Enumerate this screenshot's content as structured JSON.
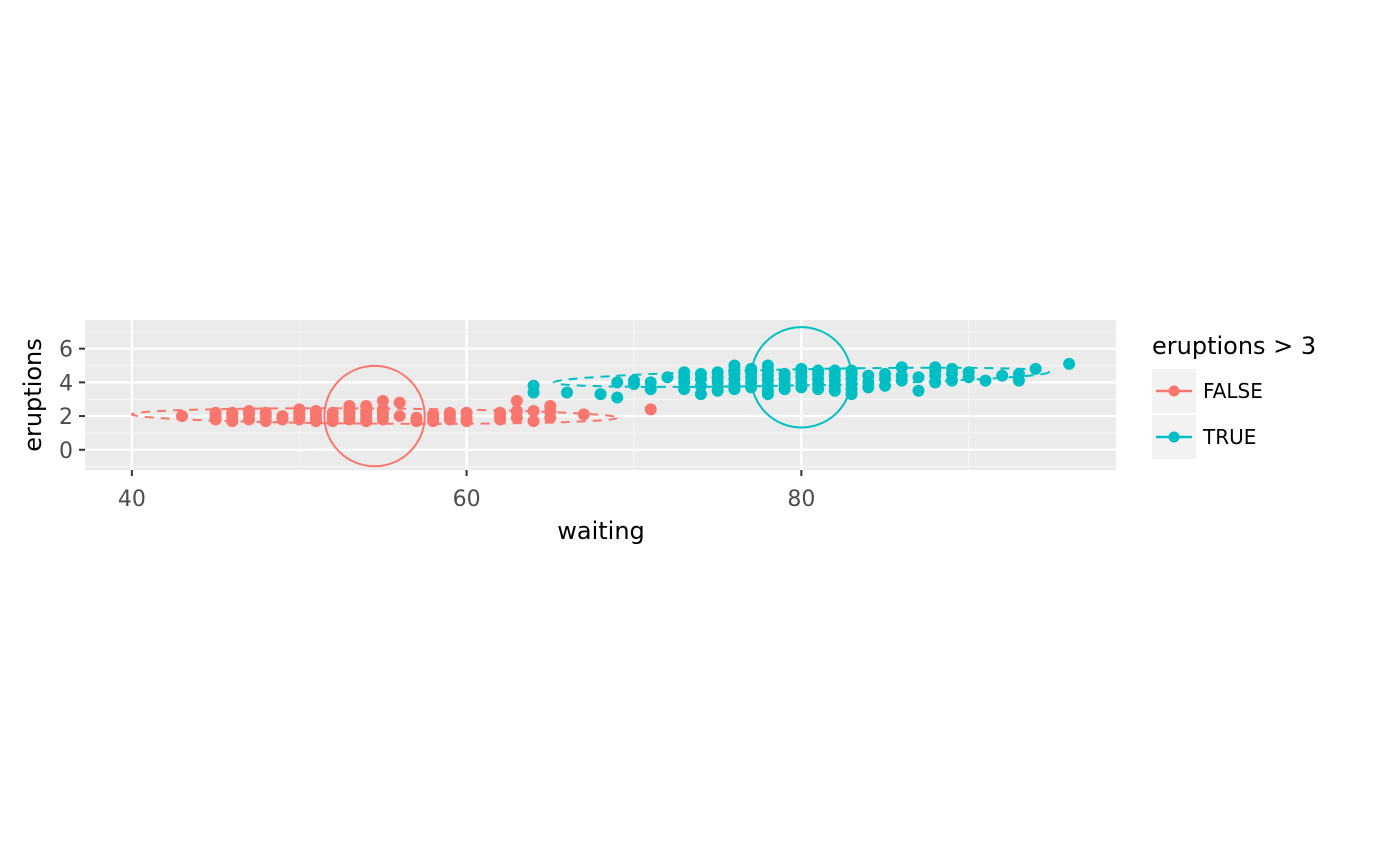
{
  "chart_data": {
    "type": "scatter",
    "xlabel": "waiting",
    "ylabel": "eruptions",
    "xlim": [
      37.2,
      98.8
    ],
    "ylim": [
      -1.2,
      7.7
    ],
    "x_ticks": [
      40,
      60,
      80
    ],
    "x_tick_labels": [
      "40",
      "60",
      "80"
    ],
    "y_ticks": [
      0,
      2,
      4,
      6
    ],
    "y_tick_labels": [
      "0",
      "2",
      "4",
      "6"
    ],
    "grid": true,
    "legend": {
      "title": "eruptions > 3",
      "position": "right",
      "entries": [
        "FALSE",
        "TRUE"
      ]
    },
    "series": [
      {
        "name": "FALSE",
        "color": "#F8766D",
        "points": [
          [
            43,
            2.0
          ],
          [
            45,
            1.8
          ],
          [
            45,
            2.0
          ],
          [
            45,
            2.2
          ],
          [
            46,
            1.7
          ],
          [
            46,
            1.9
          ],
          [
            46,
            2.1
          ],
          [
            46,
            2.2
          ],
          [
            47,
            1.8
          ],
          [
            47,
            2.1
          ],
          [
            47,
            2.3
          ],
          [
            48,
            1.7
          ],
          [
            48,
            2.0
          ],
          [
            48,
            2.2
          ],
          [
            49,
            1.8
          ],
          [
            49,
            2.0
          ],
          [
            50,
            1.8
          ],
          [
            50,
            2.0
          ],
          [
            50,
            2.2
          ],
          [
            50,
            2.4
          ],
          [
            51,
            1.7
          ],
          [
            51,
            1.9
          ],
          [
            51,
            2.1
          ],
          [
            51,
            2.3
          ],
          [
            52,
            1.7
          ],
          [
            52,
            1.9
          ],
          [
            52,
            2.2
          ],
          [
            53,
            1.8
          ],
          [
            53,
            2.0
          ],
          [
            53,
            2.2
          ],
          [
            53,
            2.4
          ],
          [
            53,
            2.6
          ],
          [
            54,
            1.7
          ],
          [
            54,
            1.9
          ],
          [
            54,
            2.1
          ],
          [
            54,
            2.3
          ],
          [
            54,
            2.6
          ],
          [
            55,
            1.8
          ],
          [
            55,
            2.0
          ],
          [
            55,
            2.2
          ],
          [
            55,
            2.4
          ],
          [
            55,
            2.9
          ],
          [
            56,
            2.0
          ],
          [
            56,
            2.8
          ],
          [
            57,
            1.7
          ],
          [
            57,
            1.9
          ],
          [
            58,
            1.7
          ],
          [
            58,
            1.9
          ],
          [
            58,
            2.1
          ],
          [
            59,
            1.8
          ],
          [
            59,
            2.0
          ],
          [
            59,
            2.2
          ],
          [
            60,
            1.7
          ],
          [
            60,
            1.9
          ],
          [
            60,
            2.2
          ],
          [
            62,
            1.8
          ],
          [
            62,
            2.0
          ],
          [
            62,
            2.2
          ],
          [
            63,
            1.9
          ],
          [
            63,
            2.3
          ],
          [
            63,
            2.9
          ],
          [
            64,
            1.7
          ],
          [
            64,
            2.3
          ],
          [
            65,
            1.9
          ],
          [
            65,
            2.3
          ],
          [
            65,
            2.6
          ],
          [
            67,
            2.1
          ],
          [
            71,
            2.4
          ]
        ],
        "ellipse": {
          "center": [
            54.5,
            2.0
          ],
          "rx": 14.5,
          "ry": 0.45,
          "rotation_deg": 0.4
        },
        "circle": {
          "center": [
            54.5,
            2.0
          ],
          "radius": 3.0
        }
      },
      {
        "name": "TRUE",
        "color": "#00BFC4",
        "points": [
          [
            64,
            3.4
          ],
          [
            64,
            3.8
          ],
          [
            66,
            3.4
          ],
          [
            68,
            3.3
          ],
          [
            69,
            3.1
          ],
          [
            69,
            4.0
          ],
          [
            70,
            3.9
          ],
          [
            70,
            4.1
          ],
          [
            71,
            3.6
          ],
          [
            71,
            4.0
          ],
          [
            72,
            4.3
          ],
          [
            73,
            3.6
          ],
          [
            73,
            4.0
          ],
          [
            73,
            4.3
          ],
          [
            73,
            4.6
          ],
          [
            74,
            3.3
          ],
          [
            74,
            3.8
          ],
          [
            74,
            4.2
          ],
          [
            74,
            4.5
          ],
          [
            75,
            3.5
          ],
          [
            75,
            4.0
          ],
          [
            75,
            4.3
          ],
          [
            75,
            4.6
          ],
          [
            76,
            3.6
          ],
          [
            76,
            3.9
          ],
          [
            76,
            4.2
          ],
          [
            76,
            4.5
          ],
          [
            76,
            4.7
          ],
          [
            76,
            5.0
          ],
          [
            77,
            3.7
          ],
          [
            77,
            4.0
          ],
          [
            77,
            4.3
          ],
          [
            77,
            4.6
          ],
          [
            77,
            4.8
          ],
          [
            78,
            3.3
          ],
          [
            78,
            3.5
          ],
          [
            78,
            3.8
          ],
          [
            78,
            4.1
          ],
          [
            78,
            4.4
          ],
          [
            78,
            4.7
          ],
          [
            78,
            5.0
          ],
          [
            79,
            3.6
          ],
          [
            79,
            3.9
          ],
          [
            79,
            4.2
          ],
          [
            79,
            4.5
          ],
          [
            80,
            3.7
          ],
          [
            80,
            4.0
          ],
          [
            80,
            4.3
          ],
          [
            80,
            4.6
          ],
          [
            80,
            4.8
          ],
          [
            81,
            3.6
          ],
          [
            81,
            3.9
          ],
          [
            81,
            4.2
          ],
          [
            81,
            4.5
          ],
          [
            81,
            4.7
          ],
          [
            82,
            3.5
          ],
          [
            82,
            3.8
          ],
          [
            82,
            4.1
          ],
          [
            82,
            4.4
          ],
          [
            82,
            4.7
          ],
          [
            83,
            3.3
          ],
          [
            83,
            3.6
          ],
          [
            83,
            3.9
          ],
          [
            83,
            4.2
          ],
          [
            83,
            4.5
          ],
          [
            83,
            4.7
          ],
          [
            84,
            3.7
          ],
          [
            84,
            4.0
          ],
          [
            84,
            4.4
          ],
          [
            85,
            3.8
          ],
          [
            85,
            4.2
          ],
          [
            85,
            4.5
          ],
          [
            86,
            4.1
          ],
          [
            86,
            4.4
          ],
          [
            86,
            4.9
          ],
          [
            87,
            3.5
          ],
          [
            87,
            4.3
          ],
          [
            88,
            4.0
          ],
          [
            88,
            4.4
          ],
          [
            88,
            4.7
          ],
          [
            88,
            4.9
          ],
          [
            89,
            4.1
          ],
          [
            89,
            4.5
          ],
          [
            89,
            4.8
          ],
          [
            90,
            4.3
          ],
          [
            90,
            4.6
          ],
          [
            91,
            4.1
          ],
          [
            92,
            4.4
          ],
          [
            93,
            4.1
          ],
          [
            93,
            4.5
          ],
          [
            94,
            4.8
          ],
          [
            96,
            5.1
          ]
        ],
        "ellipse": {
          "center": [
            80.0,
            4.3
          ],
          "rx": 14.8,
          "ry": 0.48,
          "rotation_deg": -1.2
        },
        "circle": {
          "center": [
            80.0,
            4.3
          ],
          "radius": 3.0
        }
      }
    ]
  }
}
